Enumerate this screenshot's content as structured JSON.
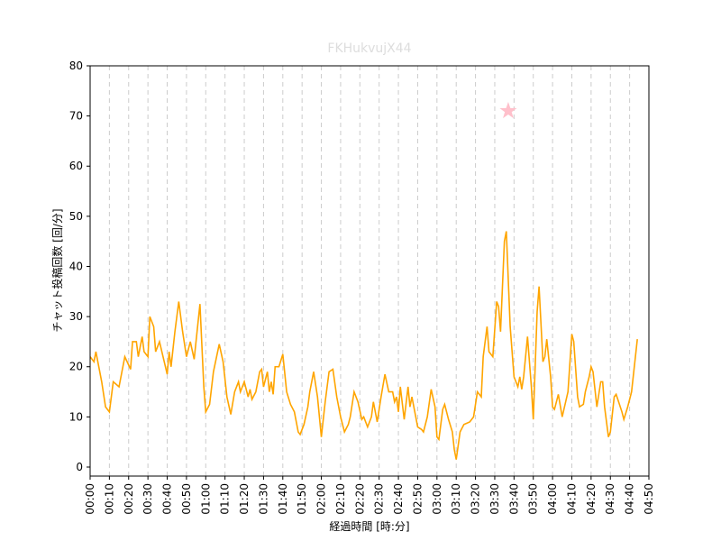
{
  "chart_data": {
    "type": "line",
    "title": "FKHukvujX44",
    "title_color": "#dddddd",
    "xlabel": "経過時間 [時:分]",
    "ylabel": "チャット投稿回数 [回/分]",
    "xlim": [
      0,
      290
    ],
    "ylim": [
      -1.8,
      80
    ],
    "xticks": [
      {
        "value": 0,
        "label": "00:00"
      },
      {
        "value": 10,
        "label": "00:10"
      },
      {
        "value": 20,
        "label": "00:20"
      },
      {
        "value": 30,
        "label": "00:30"
      },
      {
        "value": 40,
        "label": "00:40"
      },
      {
        "value": 50,
        "label": "00:50"
      },
      {
        "value": 60,
        "label": "01:00"
      },
      {
        "value": 70,
        "label": "01:10"
      },
      {
        "value": 80,
        "label": "01:20"
      },
      {
        "value": 90,
        "label": "01:30"
      },
      {
        "value": 100,
        "label": "01:40"
      },
      {
        "value": 110,
        "label": "01:50"
      },
      {
        "value": 120,
        "label": "02:00"
      },
      {
        "value": 130,
        "label": "02:10"
      },
      {
        "value": 140,
        "label": "02:20"
      },
      {
        "value": 150,
        "label": "02:30"
      },
      {
        "value": 160,
        "label": "02:40"
      },
      {
        "value": 170,
        "label": "02:50"
      },
      {
        "value": 180,
        "label": "03:00"
      },
      {
        "value": 190,
        "label": "03:10"
      },
      {
        "value": 200,
        "label": "03:20"
      },
      {
        "value": 210,
        "label": "03:30"
      },
      {
        "value": 220,
        "label": "03:40"
      },
      {
        "value": 230,
        "label": "03:50"
      },
      {
        "value": 240,
        "label": "04:00"
      },
      {
        "value": 250,
        "label": "04:10"
      },
      {
        "value": 260,
        "label": "04:20"
      },
      {
        "value": 270,
        "label": "04:30"
      },
      {
        "value": 280,
        "label": "04:40"
      },
      {
        "value": 290,
        "label": "04:50"
      }
    ],
    "yticks": [
      0,
      10,
      20,
      30,
      40,
      50,
      60,
      70,
      80
    ],
    "grid_x": true,
    "x": [
      0,
      2,
      3,
      6,
      8,
      10,
      12,
      15,
      18,
      21,
      22,
      24,
      25,
      27,
      28,
      30,
      31,
      33,
      34,
      36,
      40,
      41,
      42,
      44,
      46,
      48,
      50,
      52,
      54,
      57,
      59,
      60,
      62,
      64,
      67,
      69,
      71,
      73,
      75,
      77,
      78,
      80,
      82,
      83,
      84,
      86,
      88,
      89,
      90,
      92,
      93,
      94,
      95,
      96,
      98,
      100,
      102,
      104,
      106,
      108,
      109,
      111,
      113,
      114,
      116,
      118,
      120,
      122,
      124,
      126,
      128,
      130,
      132,
      134,
      135,
      137,
      139,
      141,
      142,
      144,
      146,
      147,
      149,
      151,
      153,
      155,
      157,
      158,
      159,
      160,
      161,
      163,
      165,
      166,
      167,
      170,
      172,
      173,
      175,
      177,
      179,
      180,
      181,
      183,
      184,
      186,
      188,
      189,
      190,
      192,
      194,
      197,
      199,
      201,
      203,
      204,
      206,
      207,
      209,
      211,
      212,
      213,
      215,
      216,
      218,
      220,
      222,
      223,
      224,
      225,
      227,
      229,
      230,
      232,
      233,
      235,
      236,
      237,
      239,
      240,
      241,
      243,
      245,
      248,
      250,
      251,
      253,
      254,
      256,
      257,
      259,
      260,
      261,
      263,
      265,
      266,
      267,
      269,
      270,
      272,
      273,
      276,
      277,
      279,
      281,
      283,
      284
    ],
    "series": [
      {
        "name": "chat",
        "color": "#ffa500",
        "values": [
          22,
          21,
          23,
          17,
          12,
          11,
          17,
          16,
          22,
          19.5,
          25,
          25,
          22,
          26,
          23,
          22,
          30,
          28,
          23,
          25,
          18.5,
          23,
          20,
          27,
          33,
          27,
          22,
          25,
          21.5,
          32.5,
          16,
          11,
          12.5,
          19,
          24.5,
          21,
          14,
          10.5,
          15,
          17,
          15,
          17,
          14,
          15.5,
          13.5,
          15,
          19,
          19.5,
          16,
          19,
          15,
          17,
          14.5,
          20,
          20,
          22.5,
          15,
          12.5,
          11,
          7,
          6.5,
          8.5,
          12,
          15,
          19,
          14,
          6,
          13,
          19,
          19.5,
          14,
          10,
          7,
          8.5,
          10,
          15,
          13,
          9.5,
          10,
          8,
          10,
          13,
          9,
          14,
          18.5,
          15,
          15,
          13,
          14,
          11,
          16,
          9.5,
          16,
          12,
          14,
          8,
          7.5,
          7,
          10,
          15.5,
          12,
          6,
          5.5,
          11.5,
          12.5,
          9.5,
          7,
          3.5,
          1.5,
          7,
          8.5,
          9,
          10,
          15,
          14,
          22,
          28,
          23,
          22,
          33,
          32,
          27,
          45,
          47,
          28,
          18,
          16,
          18,
          15.5,
          18,
          26,
          16,
          9.5,
          31,
          36,
          21,
          22,
          25.5,
          18,
          12,
          11.5,
          14.5,
          10,
          15,
          26.5,
          25,
          14,
          12,
          12.5,
          15,
          18,
          20,
          19,
          12,
          17,
          17,
          12,
          6,
          7,
          14,
          14.5,
          11,
          9.5,
          12,
          15,
          22,
          25.5
        ]
      }
    ],
    "highlight": {
      "x": [
        217
      ],
      "values": [
        71
      ],
      "color": "#ffc0cb"
    }
  }
}
